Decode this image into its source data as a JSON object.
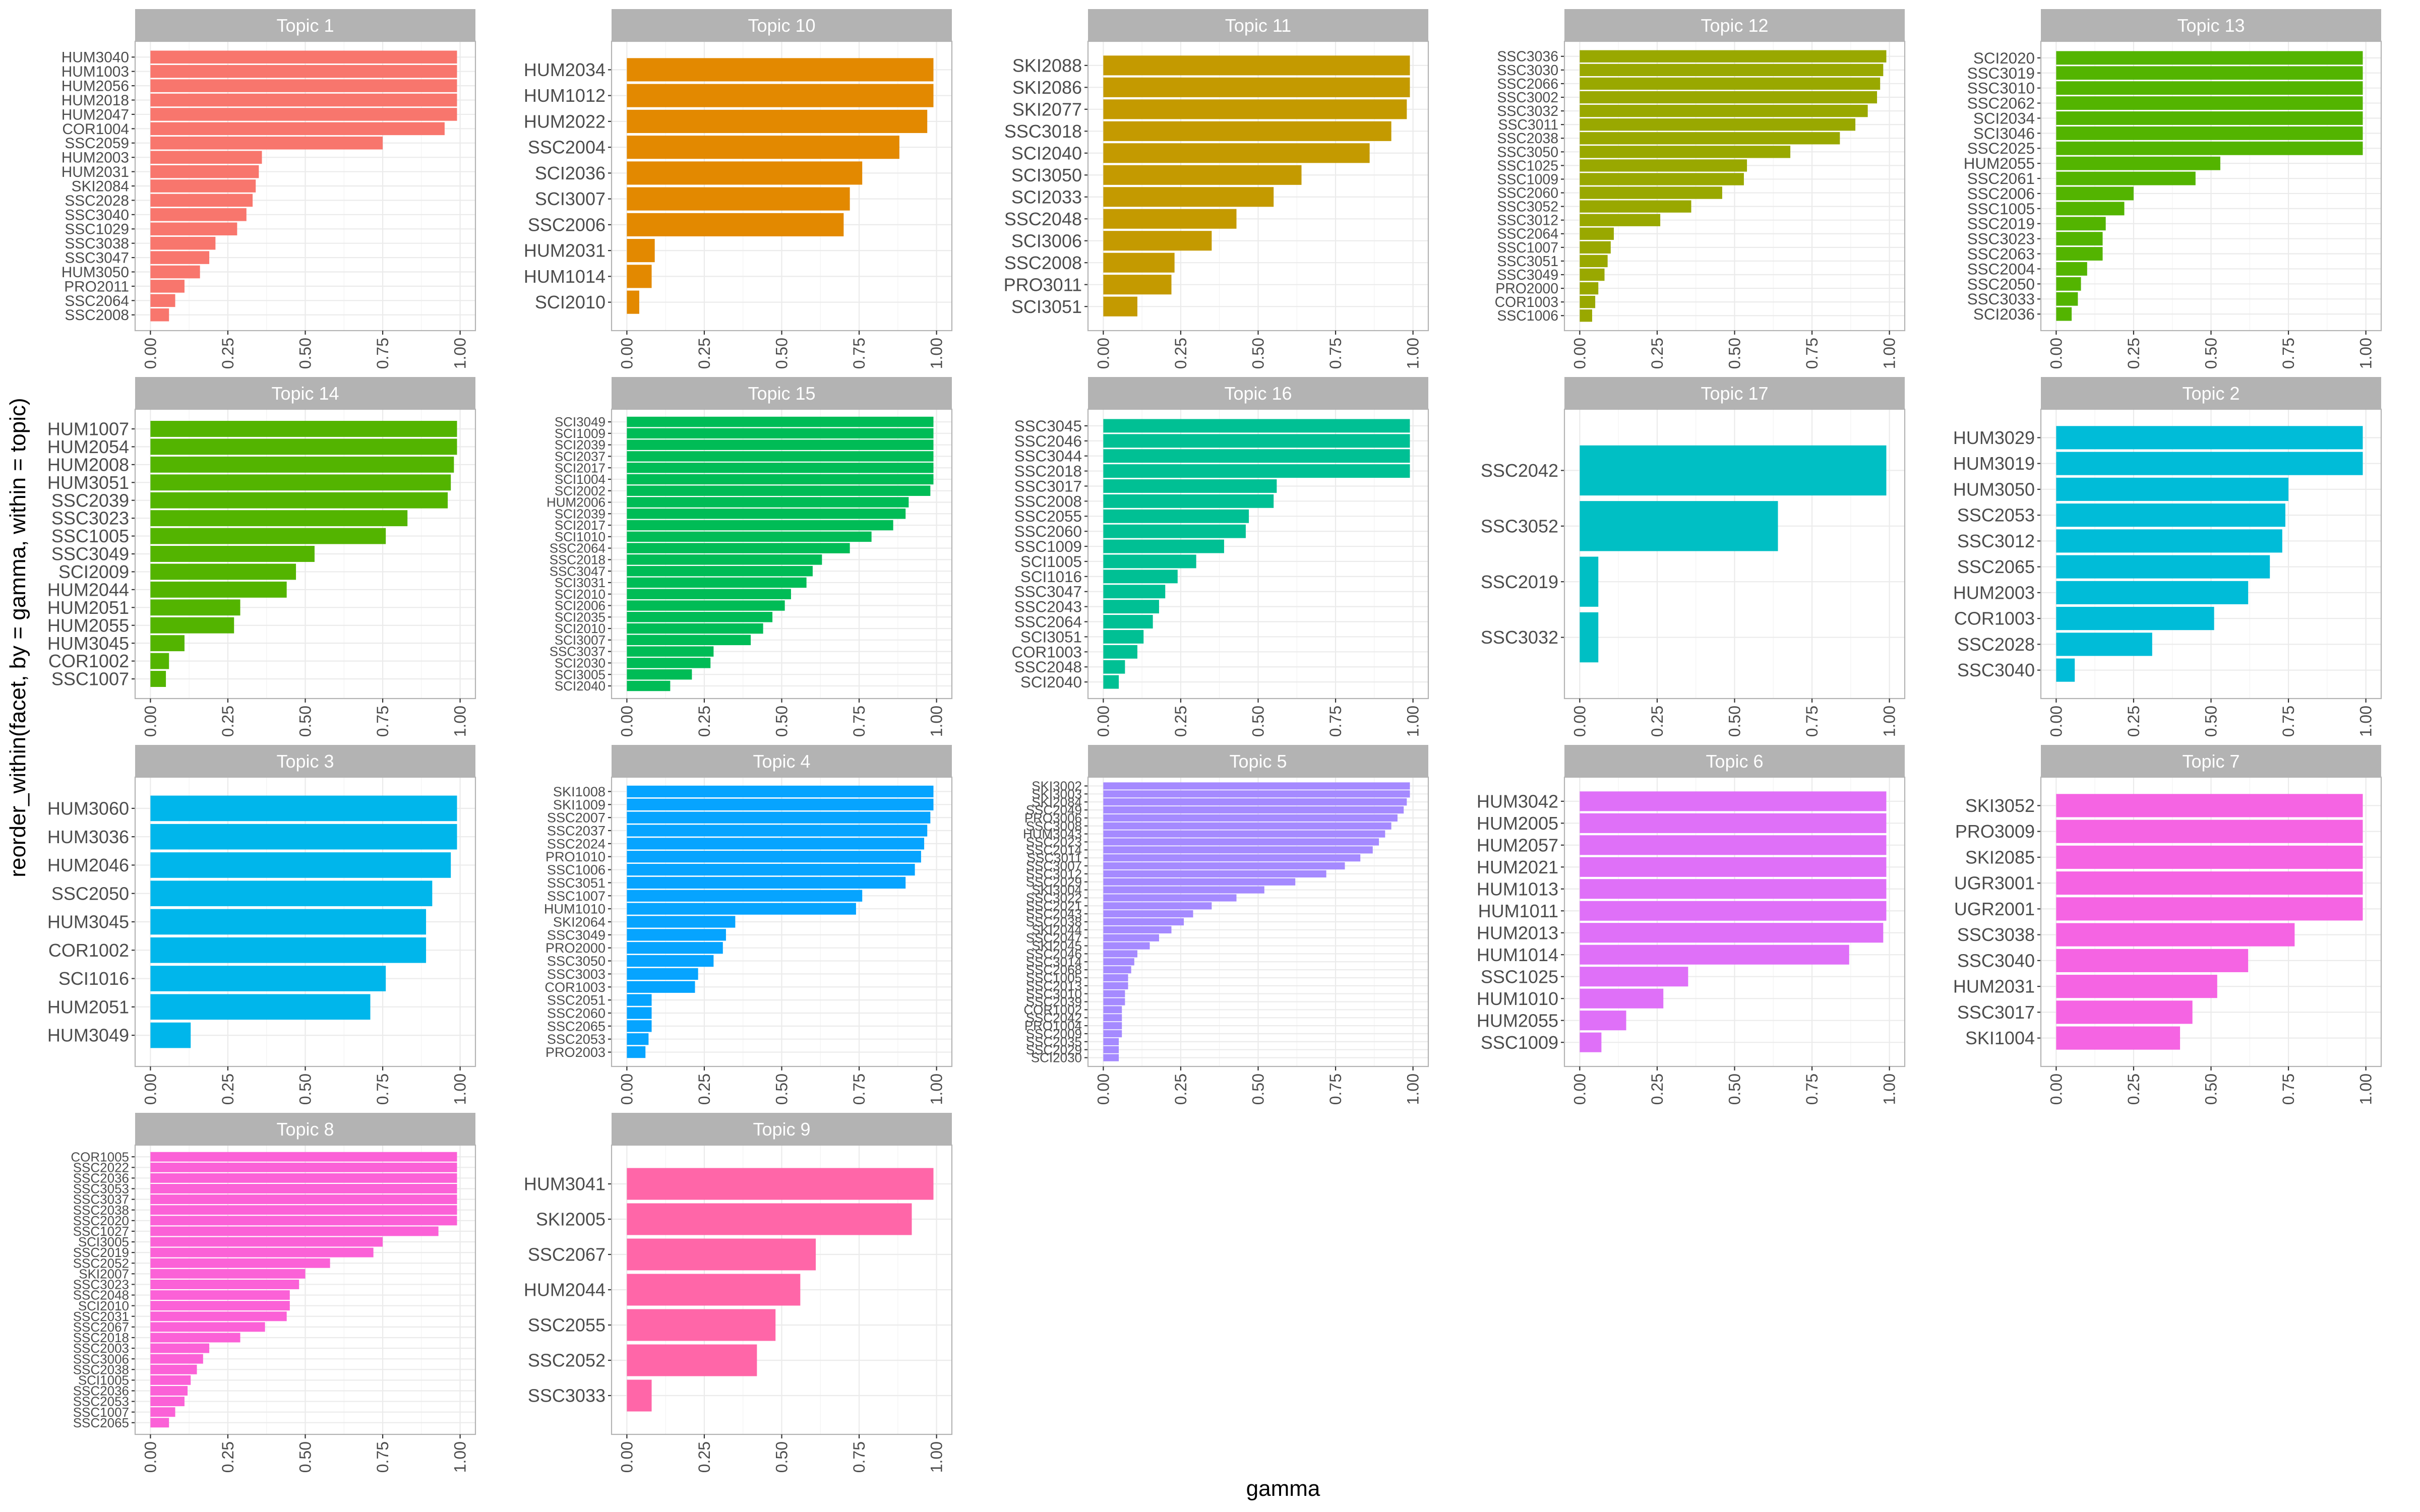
{
  "chart_data": {
    "type": "bar",
    "orientation": "horizontal",
    "facet_by": "topic",
    "xlabel": "gamma",
    "ylabel": "reorder_within(facet, by = gamma, within = topic)",
    "xlim": [
      0,
      1
    ],
    "x_ticks": [
      "0.00",
      "0.25",
      "0.50",
      "0.75",
      "1.00"
    ],
    "grid": true,
    "panels": [
      {
        "title": "Topic 1",
        "color": "#F8766D",
        "categories": [
          "HUM3040",
          "HUM1003",
          "HUM2056",
          "HUM2018",
          "HUM2047",
          "COR1004",
          "SSC2059",
          "HUM2003",
          "HUM2031",
          "SKI2084",
          "SSC2028",
          "SSC3040",
          "SSC1029",
          "SSC3038",
          "SSC3047",
          "HUM3050",
          "PRO2011",
          "SSC2064",
          "SSC2008"
        ],
        "values": [
          0.99,
          0.99,
          0.99,
          0.99,
          0.99,
          0.95,
          0.75,
          0.36,
          0.35,
          0.34,
          0.33,
          0.31,
          0.28,
          0.21,
          0.19,
          0.16,
          0.11,
          0.08,
          0.06
        ]
      },
      {
        "title": "Topic 10",
        "color": "#E38900",
        "categories": [
          "HUM2034",
          "HUM1012",
          "HUM2022",
          "SSC2004",
          "SCI2036",
          "SCI3007",
          "SSC2006",
          "HUM2031",
          "HUM1014",
          "SCI2010"
        ],
        "values": [
          0.99,
          0.99,
          0.97,
          0.88,
          0.76,
          0.72,
          0.7,
          0.09,
          0.08,
          0.04
        ]
      },
      {
        "title": "Topic 11",
        "color": "#C49A00",
        "categories": [
          "SKI2088",
          "SKI2086",
          "SKI2077",
          "SSC3018",
          "SCI2040",
          "SCI3050",
          "SCI2033",
          "SSC2048",
          "SCI3006",
          "SSC2008",
          "PRO3011",
          "SCI3051"
        ],
        "values": [
          0.99,
          0.99,
          0.98,
          0.93,
          0.86,
          0.64,
          0.55,
          0.43,
          0.35,
          0.23,
          0.22,
          0.11
        ]
      },
      {
        "title": "Topic 12",
        "color": "#99A800",
        "categories": [
          "SSC3036",
          "SSC3030",
          "SSC2066",
          "SSC3002",
          "SSC3032",
          "SSC3011",
          "SSC2038",
          "SSC3050",
          "SSC1025",
          "SSC1009",
          "SSC2060",
          "SSC3052",
          "SSC3012",
          "SSC2064",
          "SSC1007",
          "SSC3051",
          "SSC3049",
          "PRO2000",
          "COR1003",
          "SSC1006"
        ],
        "values": [
          0.99,
          0.98,
          0.97,
          0.96,
          0.93,
          0.89,
          0.84,
          0.68,
          0.54,
          0.53,
          0.46,
          0.36,
          0.26,
          0.11,
          0.1,
          0.09,
          0.08,
          0.06,
          0.05,
          0.04
        ]
      },
      {
        "title": "Topic 13",
        "color": "#53B400",
        "categories": [
          "SCI2020",
          "SSC3019",
          "SSC3010",
          "SSC2062",
          "SCI2034",
          "SCI3046",
          "SSC2025",
          "HUM2055",
          "SSC2061",
          "SSC2006",
          "SSC1005",
          "SSC2019",
          "SSC3023",
          "SSC2063",
          "SSC2004",
          "SSC2050",
          "SSC3033",
          "SCI2036"
        ],
        "values": [
          0.99,
          0.99,
          0.99,
          0.99,
          0.99,
          0.99,
          0.99,
          0.53,
          0.45,
          0.25,
          0.22,
          0.16,
          0.15,
          0.15,
          0.1,
          0.08,
          0.07,
          0.05
        ]
      },
      {
        "title": "Topic 14",
        "color": "#53B400",
        "categories": [
          "HUM1007",
          "HUM2054",
          "HUM2008",
          "HUM3051",
          "SSC2039",
          "SSC3023",
          "SSC1005",
          "SSC3049",
          "SCI2009",
          "HUM2044",
          "HUM2051",
          "HUM2055",
          "HUM3045",
          "COR1002",
          "SSC1007"
        ],
        "values": [
          0.99,
          0.99,
          0.98,
          0.97,
          0.96,
          0.83,
          0.76,
          0.53,
          0.47,
          0.44,
          0.29,
          0.27,
          0.11,
          0.06,
          0.05
        ]
      },
      {
        "title": "Topic 15",
        "color": "#00BC56",
        "categories": [
          "SCI3049",
          "SCI1009",
          "SCI2039",
          "SCI2037",
          "SCI2017",
          "SCI1004",
          "SCI2002",
          "HUM2006",
          "SCI2039",
          "SCI2017",
          "SCI1010",
          "SSC2064",
          "SSC2018",
          "SSC3047",
          "SCI3031",
          "SCI2010",
          "SCI2006",
          "SCI2035",
          "SCI2010",
          "SCI3007",
          "SSC3037",
          "SCI2030",
          "SCI3005",
          "SCI2040"
        ],
        "values": [
          0.99,
          0.99,
          0.99,
          0.99,
          0.99,
          0.99,
          0.98,
          0.91,
          0.9,
          0.86,
          0.79,
          0.72,
          0.63,
          0.6,
          0.58,
          0.53,
          0.51,
          0.47,
          0.44,
          0.4,
          0.28,
          0.27,
          0.21,
          0.14
        ]
      },
      {
        "title": "Topic 16",
        "color": "#00C094",
        "categories": [
          "SSC3045",
          "SSC2046",
          "SSC3044",
          "SSC2018",
          "SSC3017",
          "SSC2008",
          "SSC2055",
          "SSC2060",
          "SSC1009",
          "SCI1005",
          "SCI1016",
          "SSC3047",
          "SSC2043",
          "SSC2064",
          "SCI3051",
          "COR1003",
          "SSC2048",
          "SCI2040"
        ],
        "values": [
          0.99,
          0.99,
          0.99,
          0.99,
          0.56,
          0.55,
          0.47,
          0.46,
          0.39,
          0.3,
          0.24,
          0.2,
          0.18,
          0.16,
          0.13,
          0.11,
          0.07,
          0.05
        ]
      },
      {
        "title": "Topic 17",
        "color": "#00BFC4",
        "categories": [
          "SSC2042",
          "SSC3052",
          "SSC2019",
          "SSC3032"
        ],
        "values": [
          0.99,
          0.64,
          0.06,
          0.06
        ]
      },
      {
        "title": "Topic 2",
        "color": "#00BCD8",
        "categories": [
          "HUM3029",
          "HUM3019",
          "HUM3050",
          "SSC2053",
          "SSC3012",
          "SSC2065",
          "HUM2003",
          "COR1003",
          "SSC2028",
          "SSC3040"
        ],
        "values": [
          0.99,
          0.99,
          0.75,
          0.74,
          0.73,
          0.69,
          0.62,
          0.51,
          0.31,
          0.06
        ]
      },
      {
        "title": "Topic 3",
        "color": "#00B6EB",
        "categories": [
          "HUM3060",
          "HUM3036",
          "HUM2046",
          "SSC2050",
          "HUM3045",
          "COR1002",
          "SCI1016",
          "HUM2051",
          "HUM3049"
        ],
        "values": [
          0.99,
          0.99,
          0.97,
          0.91,
          0.89,
          0.89,
          0.76,
          0.71,
          0.13
        ]
      },
      {
        "title": "Topic 4",
        "color": "#06A4FF",
        "categories": [
          "SKI1008",
          "SKI1009",
          "SSC2007",
          "SSC2037",
          "SSC2024",
          "PRO1010",
          "SSC1006",
          "SSC3051",
          "SSC1007",
          "HUM1010",
          "SKI2064",
          "SSC3049",
          "PRO2000",
          "SSC3050",
          "SSC3003",
          "COR1003",
          "SSC2051",
          "SSC2060",
          "SSC2065",
          "SSC2053",
          "PRO2003"
        ],
        "values": [
          0.99,
          0.99,
          0.98,
          0.97,
          0.96,
          0.95,
          0.93,
          0.9,
          0.76,
          0.74,
          0.35,
          0.32,
          0.31,
          0.28,
          0.23,
          0.22,
          0.08,
          0.08,
          0.08,
          0.07,
          0.06
        ]
      },
      {
        "title": "Topic 5",
        "color": "#A58AFF",
        "categories": [
          "SKI3002",
          "SKI3003",
          "SKI2084",
          "SSC2049",
          "PRO3006",
          "SSC3008",
          "HUM3043",
          "SSC2023",
          "SSC2014",
          "SSC3011",
          "SSC3007",
          "SSC3012",
          "SSC2029",
          "SKI3004",
          "SSC3022",
          "SSC2021",
          "SSC2043",
          "SSC2038",
          "SKI2044",
          "SSC2047",
          "SKI2045",
          "SSC2046",
          "SSC3014",
          "SSC2068",
          "SSC1005",
          "SSC2013",
          "SSC3010",
          "SSC2039",
          "COR1002",
          "SSC2042",
          "PRO1004",
          "SSC2009",
          "SSC2035",
          "SSC2029",
          "SCI2030"
        ],
        "values": [
          0.99,
          0.99,
          0.98,
          0.97,
          0.95,
          0.93,
          0.91,
          0.89,
          0.87,
          0.83,
          0.78,
          0.72,
          0.62,
          0.52,
          0.43,
          0.35,
          0.29,
          0.26,
          0.22,
          0.18,
          0.15,
          0.11,
          0.1,
          0.09,
          0.08,
          0.08,
          0.07,
          0.07,
          0.06,
          0.06,
          0.06,
          0.06,
          0.05,
          0.05,
          0.05
        ]
      },
      {
        "title": "Topic 6",
        "color": "#DF70F8",
        "categories": [
          "HUM3042",
          "HUM2005",
          "HUM2057",
          "HUM2021",
          "HUM1013",
          "HUM1011",
          "HUM2013",
          "HUM1014",
          "SSC1025",
          "HUM1010",
          "HUM2055",
          "SSC1009"
        ],
        "values": [
          0.99,
          0.99,
          0.99,
          0.99,
          0.99,
          0.99,
          0.98,
          0.87,
          0.35,
          0.27,
          0.15,
          0.07
        ]
      },
      {
        "title": "Topic 7",
        "color": "#F564E3",
        "categories": [
          "SKI3052",
          "PRO3009",
          "SKI2085",
          "UGR3001",
          "UGR2001",
          "SSC3038",
          "SSC3040",
          "HUM2031",
          "SSC3017",
          "SKI1004"
        ],
        "values": [
          0.99,
          0.99,
          0.99,
          0.99,
          0.99,
          0.77,
          0.62,
          0.52,
          0.44,
          0.4
        ]
      },
      {
        "title": "Topic 8",
        "color": "#FB61D7",
        "categories": [
          "COR1005",
          "SSC2022",
          "SSC2036",
          "SSC3053",
          "SSC3037",
          "SSC2038",
          "SSC2020",
          "SSC1027",
          "SCI3005",
          "SSC2019",
          "SSC2052",
          "SKI2007",
          "SSC3023",
          "SSC2048",
          "SCI2010",
          "SSC2031",
          "SSC2067",
          "SSC2018",
          "SSC2003",
          "SSC3006",
          "SSC2038",
          "SCI1005",
          "SSC2036",
          "SSC2053",
          "SSC1007",
          "SSC2065"
        ],
        "values": [
          0.99,
          0.99,
          0.99,
          0.99,
          0.99,
          0.99,
          0.99,
          0.93,
          0.75,
          0.72,
          0.58,
          0.5,
          0.48,
          0.45,
          0.45,
          0.44,
          0.37,
          0.29,
          0.19,
          0.17,
          0.15,
          0.13,
          0.12,
          0.11,
          0.08,
          0.06
        ]
      },
      {
        "title": "Topic 9",
        "color": "#FF66A8",
        "categories": [
          "HUM3041",
          "SKI2005",
          "SSC2067",
          "HUM2044",
          "SSC2055",
          "SSC2052",
          "SSC3033"
        ],
        "values": [
          0.99,
          0.92,
          0.61,
          0.56,
          0.48,
          0.42,
          0.08
        ]
      }
    ]
  }
}
